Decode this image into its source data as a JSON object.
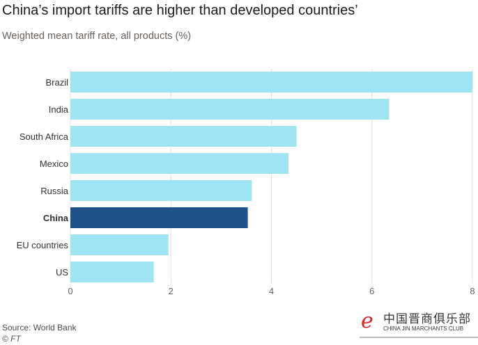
{
  "watermark": {
    "chinese": "中国晋商俱乐部",
    "english": "CHINA JIN MARCHANTS CLUB"
  },
  "chart_data": {
    "type": "bar",
    "orientation": "horizontal",
    "title": "China’s import tariffs are higher than developed countries’",
    "subtitle": "Weighted mean tariff rate, all products (%)",
    "categories": [
      "Brazil",
      "India",
      "South Africa",
      "Mexico",
      "Russia",
      "China",
      "EU countries",
      "US"
    ],
    "values": [
      8.0,
      6.34,
      4.5,
      4.34,
      3.61,
      3.53,
      1.95,
      1.66
    ],
    "highlight": "China",
    "colors": {
      "default": "#9ee4f2",
      "highlight": "#1e5288",
      "grid": "#e2e0de"
    },
    "xlim": [
      0,
      8
    ],
    "xticks": [
      "0",
      "2",
      "4",
      "6",
      "8"
    ],
    "xlabel": "",
    "ylabel": "",
    "grid": true,
    "source": "Source: World Bank",
    "credit": "© FT"
  }
}
